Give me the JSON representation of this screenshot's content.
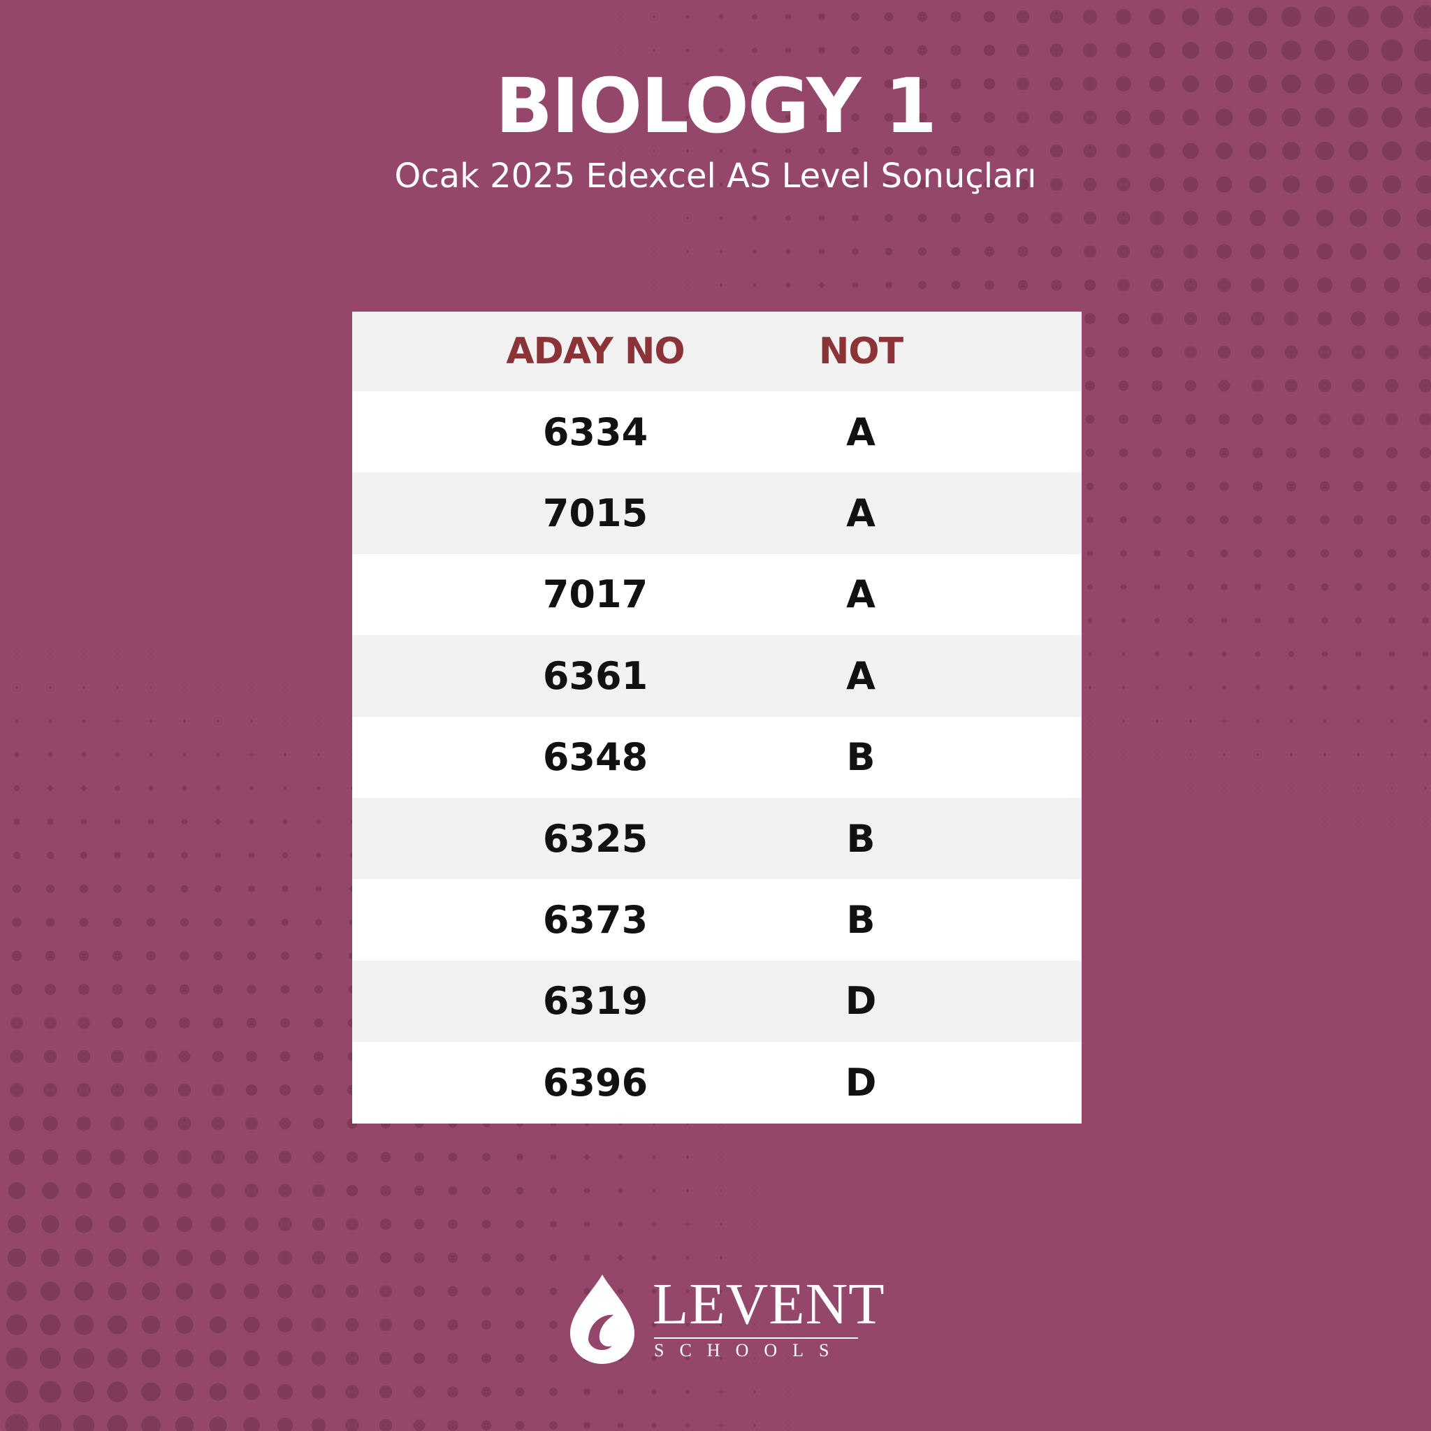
{
  "title": "BIOLOGY 1",
  "subtitle": "Ocak 2025 Edexcel AS Level Sonuçları",
  "table": {
    "headers": [
      "ADAY NO",
      "NOT"
    ],
    "rows": [
      [
        "6334",
        "A"
      ],
      [
        "7015",
        "A"
      ],
      [
        "7017",
        "A"
      ],
      [
        "6361",
        "A"
      ],
      [
        "6348",
        "B"
      ],
      [
        "6325",
        "B"
      ],
      [
        "6373",
        "B"
      ],
      [
        "6319",
        "D"
      ],
      [
        "6396",
        "D"
      ]
    ]
  },
  "logo": {
    "name": "LEVENT",
    "sub": "SCHOOLS",
    "icon": "drop-logo-icon"
  },
  "colors": {
    "background": "#94476a",
    "dots": "#6f2f4c",
    "header_text": "#8c3338",
    "row_alt": "#f2f2f2",
    "text": "#111111"
  }
}
